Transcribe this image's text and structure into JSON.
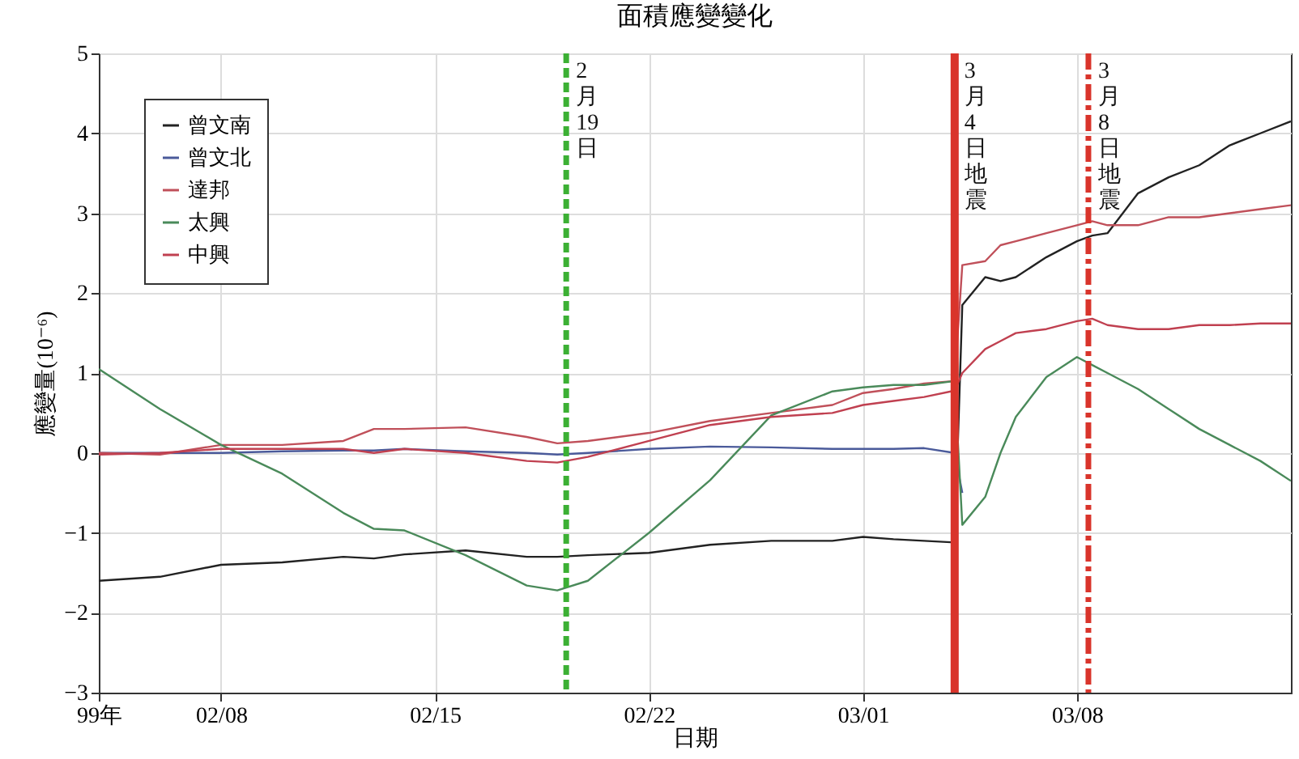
{
  "chart_data": {
    "type": "line",
    "title": "面積應變變化",
    "xlabel": "日期",
    "ylabel": "應變量(10⁻⁶)",
    "x": [
      "--02-04",
      "--02-06",
      "--02-08",
      "--02-10",
      "--02-12",
      "--02-13",
      "--02-14",
      "--02-16",
      "--02-18",
      "--02-19",
      "--02-20",
      "--02-22",
      "--02-24",
      "--02-26",
      "--02-28",
      "--03-01",
      "--03-02",
      "--03-03",
      "--03-04",
      "--03-04T06:00",
      "--03-05",
      "--03-05T12:00",
      "--03-06",
      "--03-07",
      "--03-08",
      "--03-08T12:00",
      "--03-09",
      "--03-10",
      "--03-11",
      "--03-12",
      "--03-13",
      "--03-14",
      "--03-15"
    ],
    "series": [
      {
        "name": "曾文南",
        "color": "#222222",
        "values": [
          -1.6,
          -1.55,
          -1.4,
          -1.37,
          -1.3,
          -1.32,
          -1.27,
          -1.22,
          -1.3,
          -1.3,
          -1.28,
          -1.25,
          -1.15,
          -1.1,
          -1.1,
          -1.05,
          -1.08,
          -1.1,
          -1.12,
          1.85,
          2.2,
          2.15,
          2.2,
          2.45,
          2.65,
          2.72,
          2.75,
          3.25,
          3.45,
          3.6,
          3.85,
          4.0,
          4.15
        ]
      },
      {
        "name": "曾文北",
        "color": "#4a5a9a",
        "values": [
          0,
          0,
          0,
          0.02,
          0.03,
          0.03,
          0.05,
          0.02,
          0,
          -0.02,
          0,
          0.05,
          0.08,
          0.07,
          0.05,
          0.05,
          0.05,
          0.06,
          0,
          -0.5,
          null,
          null,
          null,
          null,
          null,
          null,
          null,
          null,
          null,
          null,
          null,
          null,
          null
        ]
      },
      {
        "name": "達邦",
        "color": "#c0505a",
        "values": [
          0,
          -0.02,
          0.1,
          0.1,
          0.15,
          0.3,
          0.3,
          0.32,
          0.2,
          0.12,
          0.15,
          0.25,
          0.4,
          0.5,
          0.6,
          0.75,
          0.8,
          0.87,
          0.9,
          2.35,
          2.4,
          2.6,
          2.65,
          2.75,
          2.85,
          2.9,
          2.85,
          2.85,
          2.95,
          2.95,
          3.0,
          3.05,
          3.1
        ]
      },
      {
        "name": "太興",
        "color": "#4a8a5a",
        "values": [
          1.05,
          0.55,
          0.1,
          -0.26,
          -0.75,
          -0.95,
          -0.97,
          -1.28,
          -1.66,
          -1.72,
          -1.6,
          -1.0,
          -0.34,
          0.47,
          0.77,
          0.82,
          0.85,
          0.85,
          0.9,
          -0.9,
          -0.55,
          0.0,
          0.45,
          0.95,
          1.2,
          1.1,
          1.0,
          0.8,
          0.55,
          0.3,
          0.1,
          -0.1,
          -0.35
        ]
      },
      {
        "name": "中興",
        "color": "#c04050",
        "values": [
          -0.02,
          0,
          0.05,
          0.05,
          0.05,
          0,
          0.05,
          0,
          -0.1,
          -0.12,
          -0.05,
          0.15,
          0.35,
          0.45,
          0.5,
          0.6,
          0.65,
          0.7,
          0.78,
          1.0,
          1.3,
          1.4,
          1.5,
          1.55,
          1.65,
          1.68,
          1.6,
          1.55,
          1.55,
          1.6,
          1.6,
          1.62,
          1.62
        ]
      }
    ],
    "xlim": [
      "--02-04",
      "--03-15"
    ],
    "xticks": [
      {
        "value": "--02-04",
        "label": "99年"
      },
      {
        "value": "--02-08",
        "label": "02/08"
      },
      {
        "value": "--02-15",
        "label": "02/15"
      },
      {
        "value": "--02-22",
        "label": "02/22"
      },
      {
        "value": "--03-01",
        "label": "03/01"
      },
      {
        "value": "--03-08",
        "label": "03/08"
      }
    ],
    "ylim": [
      -3,
      5
    ],
    "yticks": [
      -3,
      -2,
      -1,
      0,
      1,
      2,
      3,
      4,
      5
    ],
    "ref_lines": [
      {
        "axis": "x",
        "value": "--02-19T07:00",
        "label": "2月19日",
        "color": "#3cb034",
        "line_style": "dashed"
      },
      {
        "axis": "x",
        "value": "--03-04",
        "label": "3月4日地震",
        "color": "#d9342b",
        "line_style": "solid"
      },
      {
        "axis": "x",
        "value": "--03-08T09:00",
        "label": "3月8日地震",
        "color": "#d9342b",
        "line_style": "dashdot"
      }
    ],
    "grid": true,
    "legend": "top left",
    "marker": "none",
    "line_style": "solid"
  }
}
